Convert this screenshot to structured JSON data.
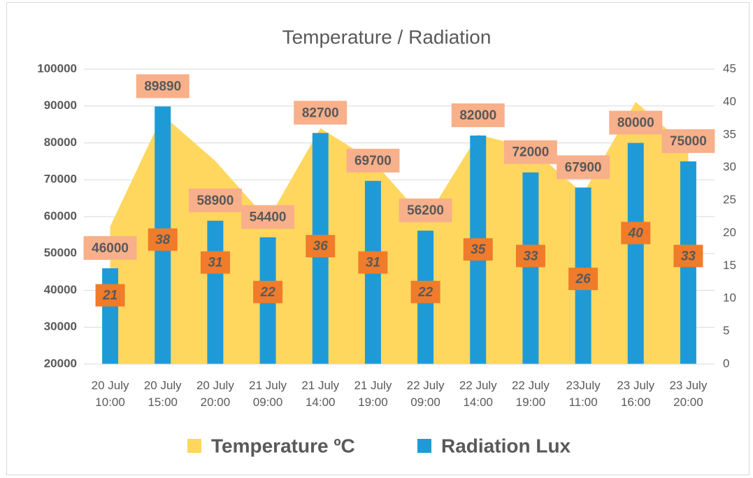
{
  "chart_data": {
    "type": "bar-area",
    "title": "Temperature / Radiation",
    "categories": [
      "20 July\n10:00",
      "20 July\n15:00",
      "20 July\n20:00",
      "21 July\n09:00",
      "21 July\n14:00",
      "21 July\n19:00",
      "22 July\n09:00",
      "22 July\n14:00",
      "22 July\n19:00",
      "23July\n11:00",
      "23 July\n16:00",
      "23 July\n20:00"
    ],
    "series": [
      {
        "name": "Temperature ºC",
        "type": "area",
        "axis": "y2",
        "color": "#ffd75e",
        "label_color": "#f07b2b",
        "values": [
          21,
          38,
          31,
          22,
          36,
          31,
          22,
          35,
          33,
          26,
          40,
          33
        ]
      },
      {
        "name": "Radiation Lux",
        "type": "bar",
        "axis": "y",
        "color": "#1e9bd7",
        "label_color": "#f8b08a",
        "values": [
          46000,
          89890,
          58900,
          54400,
          82700,
          69700,
          56200,
          82000,
          72000,
          67900,
          80000,
          75000
        ]
      }
    ],
    "ylim": [
      20000,
      100000
    ],
    "yticks": [
      20000,
      30000,
      40000,
      50000,
      60000,
      70000,
      80000,
      90000,
      100000
    ],
    "y2lim": [
      0,
      45
    ],
    "y2ticks": [
      0,
      5,
      10,
      15,
      20,
      25,
      30,
      35,
      40,
      45
    ],
    "grid": true,
    "legend": "bottom"
  }
}
